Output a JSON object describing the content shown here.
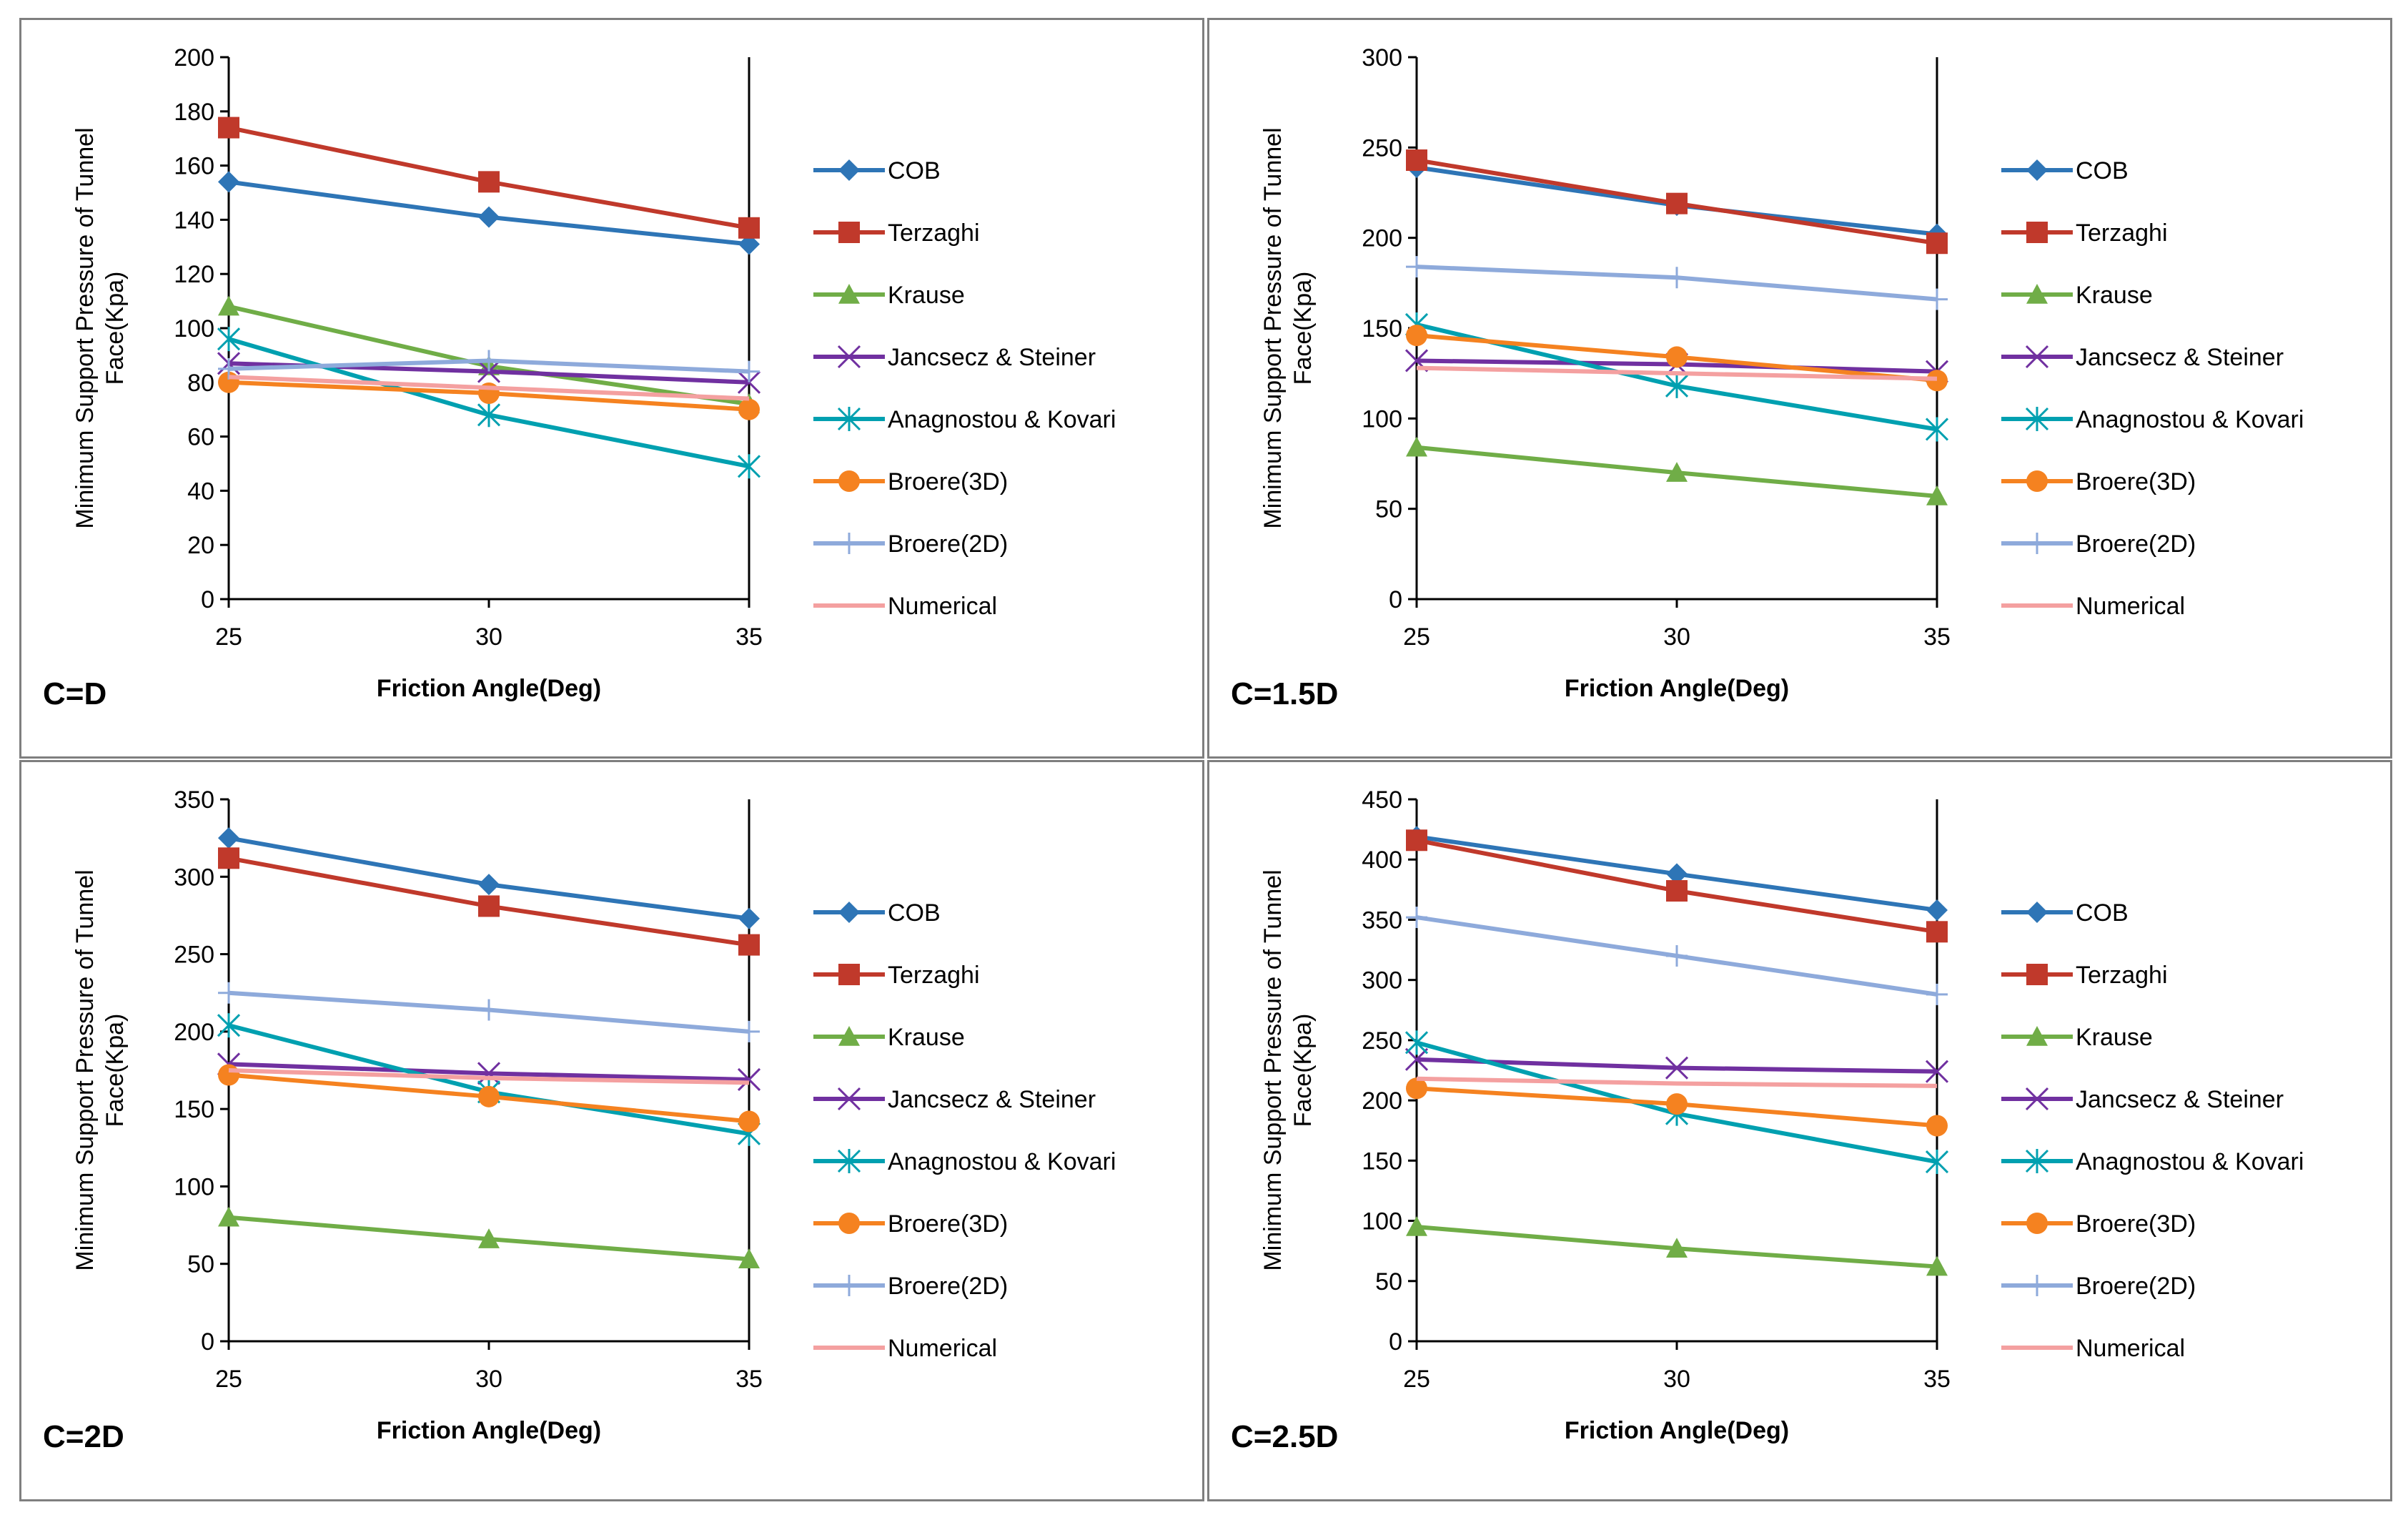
{
  "colors": {
    "COB": "#2e75b6",
    "Terzaghi": "#c0392b",
    "Krause": "#70ad47",
    "Jancsecz & Steiner": "#7030a0",
    "Anagnostou & Kovari": "#00a0b0",
    "Broere(3D)": "#f58220",
    "Broere(2D)": "#8eaadb",
    "Numerical": "#f4a0a0"
  },
  "chart_data": [
    {
      "type": "line",
      "label": "C=D",
      "xlabel": "Friction Angle(Deg)",
      "ylabel_line1": "Minimum Support Pressure of Tunnel",
      "ylabel_line2": "Face(Kpa)",
      "x": [
        25,
        30,
        35
      ],
      "ylim": [
        0,
        200
      ],
      "yticks": [
        0,
        20,
        40,
        60,
        80,
        100,
        120,
        140,
        160,
        180,
        200
      ],
      "series": [
        {
          "name": "COB",
          "marker": "diamond",
          "values": [
            154,
            141,
            131
          ]
        },
        {
          "name": "Terzaghi",
          "marker": "square",
          "values": [
            174,
            154,
            137
          ]
        },
        {
          "name": "Krause",
          "marker": "triangle",
          "values": [
            108,
            86,
            72
          ]
        },
        {
          "name": "Jancsecz & Steiner",
          "marker": "x",
          "values": [
            87,
            84,
            80
          ]
        },
        {
          "name": "Anagnostou & Kovari",
          "marker": "star",
          "values": [
            96,
            68,
            49
          ]
        },
        {
          "name": "Broere(3D)",
          "marker": "circle",
          "values": [
            80,
            76,
            70
          ]
        },
        {
          "name": "Broere(2D)",
          "marker": "plus",
          "values": [
            85,
            88,
            84
          ]
        },
        {
          "name": "Numerical",
          "marker": "none",
          "values": [
            82,
            78,
            74
          ]
        }
      ]
    },
    {
      "type": "line",
      "label": "C=1.5D",
      "xlabel": "Friction Angle(Deg)",
      "ylabel_line1": "Minimum Support Pressure of Tunnel",
      "ylabel_line2": "Face(Kpa)",
      "x": [
        25,
        30,
        35
      ],
      "ylim": [
        0,
        300
      ],
      "yticks": [
        0,
        50,
        100,
        150,
        200,
        250,
        300
      ],
      "series": [
        {
          "name": "COB",
          "marker": "diamond",
          "values": [
            239,
            218,
            202
          ]
        },
        {
          "name": "Terzaghi",
          "marker": "square",
          "values": [
            243,
            219,
            197
          ]
        },
        {
          "name": "Krause",
          "marker": "triangle",
          "values": [
            84,
            70,
            57
          ]
        },
        {
          "name": "Jancsecz & Steiner",
          "marker": "x",
          "values": [
            132,
            130,
            126
          ]
        },
        {
          "name": "Anagnostou & Kovari",
          "marker": "star",
          "values": [
            152,
            118,
            94
          ]
        },
        {
          "name": "Broere(3D)",
          "marker": "circle",
          "values": [
            146,
            134,
            121
          ]
        },
        {
          "name": "Broere(2D)",
          "marker": "plus",
          "values": [
            184,
            178,
            166
          ]
        },
        {
          "name": "Numerical",
          "marker": "none",
          "values": [
            128,
            125,
            122
          ]
        }
      ]
    },
    {
      "type": "line",
      "label": "C=2D",
      "xlabel": "Friction Angle(Deg)",
      "ylabel_line1": "Minimum Support Pressure of Tunnel",
      "ylabel_line2": "Face(Kpa)",
      "x": [
        25,
        30,
        35
      ],
      "ylim": [
        0,
        350
      ],
      "yticks": [
        0,
        50,
        100,
        150,
        200,
        250,
        300,
        350
      ],
      "series": [
        {
          "name": "COB",
          "marker": "diamond",
          "values": [
            325,
            295,
            273
          ]
        },
        {
          "name": "Terzaghi",
          "marker": "square",
          "values": [
            312,
            281,
            256
          ]
        },
        {
          "name": "Krause",
          "marker": "triangle",
          "values": [
            80,
            66,
            53
          ]
        },
        {
          "name": "Jancsecz & Steiner",
          "marker": "x",
          "values": [
            179,
            173,
            169
          ]
        },
        {
          "name": "Anagnostou & Kovari",
          "marker": "star",
          "values": [
            204,
            161,
            134
          ]
        },
        {
          "name": "Broere(3D)",
          "marker": "circle",
          "values": [
            172,
            158,
            142
          ]
        },
        {
          "name": "Broere(2D)",
          "marker": "plus",
          "values": [
            225,
            214,
            200
          ]
        },
        {
          "name": "Numerical",
          "marker": "none",
          "values": [
            175,
            170,
            167
          ]
        }
      ]
    },
    {
      "type": "line",
      "label": "C=2.5D",
      "xlabel": "Friction Angle(Deg)",
      "ylabel_line1": "Minimum Support Pressure of Tunnel",
      "ylabel_line2": "Face(Kpa)",
      "x": [
        25,
        30,
        35
      ],
      "ylim": [
        0,
        450
      ],
      "yticks": [
        0,
        50,
        100,
        150,
        200,
        250,
        300,
        350,
        400,
        450
      ],
      "series": [
        {
          "name": "COB",
          "marker": "diamond",
          "values": [
            419,
            388,
            358
          ]
        },
        {
          "name": "Terzaghi",
          "marker": "square",
          "values": [
            416,
            374,
            340
          ]
        },
        {
          "name": "Krause",
          "marker": "triangle",
          "values": [
            95,
            77,
            62
          ]
        },
        {
          "name": "Jancsecz & Steiner",
          "marker": "x",
          "values": [
            234,
            227,
            224
          ]
        },
        {
          "name": "Anagnostou & Kovari",
          "marker": "star",
          "values": [
            248,
            189,
            149
          ]
        },
        {
          "name": "Broere(3D)",
          "marker": "circle",
          "values": [
            210,
            197,
            179
          ]
        },
        {
          "name": "Broere(2D)",
          "marker": "plus",
          "values": [
            352,
            320,
            288
          ]
        },
        {
          "name": "Numerical",
          "marker": "none",
          "values": [
            218,
            214,
            212
          ]
        }
      ]
    }
  ]
}
